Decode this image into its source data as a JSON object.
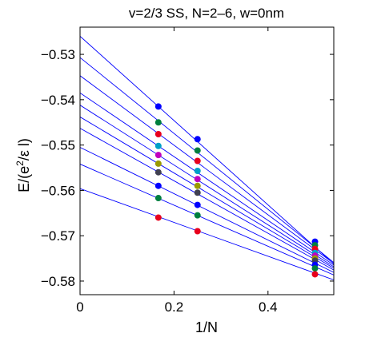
{
  "chart_data": {
    "type": "scatter",
    "title": "v=2/3 SS, N=2–6, w=0nm",
    "xlabel": "1/N",
    "ylabel_main": "E/(e",
    "ylabel_sup": "2",
    "ylabel_tail": "/ε l)",
    "xlim": [
      0,
      0.54
    ],
    "ylim": [
      -0.583,
      -0.524
    ],
    "xticks": [
      0,
      0.2,
      0.4
    ],
    "xtick_labels": [
      "0",
      "0.2",
      "0.4"
    ],
    "yticks": [
      -0.53,
      -0.54,
      -0.55,
      -0.56,
      -0.57,
      -0.58
    ],
    "ytick_labels": [
      "−0.53",
      "−0.54",
      "−0.55",
      "−0.56",
      "−0.57",
      "−0.58"
    ],
    "grid": false,
    "x": [
      0.1667,
      0.25,
      0.5
    ],
    "series": [
      {
        "color": "#0000ff",
        "values": [
          -0.5415,
          -0.5487,
          -0.5713
        ]
      },
      {
        "color": "#007f3f",
        "values": [
          -0.545,
          -0.5512,
          -0.5721
        ]
      },
      {
        "color": "#e8001c",
        "values": [
          -0.5476,
          -0.5535,
          -0.5729
        ]
      },
      {
        "color": "#00a0c8",
        "values": [
          -0.5502,
          -0.5557,
          -0.5738
        ]
      },
      {
        "color": "#c000c0",
        "values": [
          -0.5522,
          -0.5575,
          -0.5744
        ]
      },
      {
        "color": "#9a9a00",
        "values": [
          -0.5541,
          -0.559,
          -0.575
        ]
      },
      {
        "color": "#404050",
        "values": [
          -0.556,
          -0.5605,
          -0.5755
        ]
      },
      {
        "color": "#0000ff",
        "values": [
          -0.559,
          -0.5632,
          -0.5764
        ]
      },
      {
        "color": "#007f3f",
        "values": [
          -0.5617,
          -0.5655,
          -0.5772
        ]
      },
      {
        "color": "#e8001c",
        "values": [
          -0.566,
          -0.569,
          -0.5785
        ]
      }
    ],
    "fit_lines": [
      {
        "color": "#0000ff",
        "intercept": -0.526,
        "slope": -0.093
      },
      {
        "color": "#0000ff",
        "intercept": -0.5307,
        "slope": -0.0837
      },
      {
        "color": "#0000ff",
        "intercept": -0.5347,
        "slope": -0.0767
      },
      {
        "color": "#0000ff",
        "intercept": -0.5385,
        "slope": -0.0703
      },
      {
        "color": "#0000ff",
        "intercept": -0.5412,
        "slope": -0.066
      },
      {
        "color": "#0000ff",
        "intercept": -0.5438,
        "slope": -0.0618
      },
      {
        "color": "#0000ff",
        "intercept": -0.5463,
        "slope": -0.0579
      },
      {
        "color": "#0000ff",
        "intercept": -0.5505,
        "slope": -0.0511
      },
      {
        "color": "#0000ff",
        "intercept": -0.5542,
        "slope": -0.0453
      },
      {
        "color": "#0000ff",
        "intercept": -0.5596,
        "slope": -0.0373
      }
    ]
  }
}
